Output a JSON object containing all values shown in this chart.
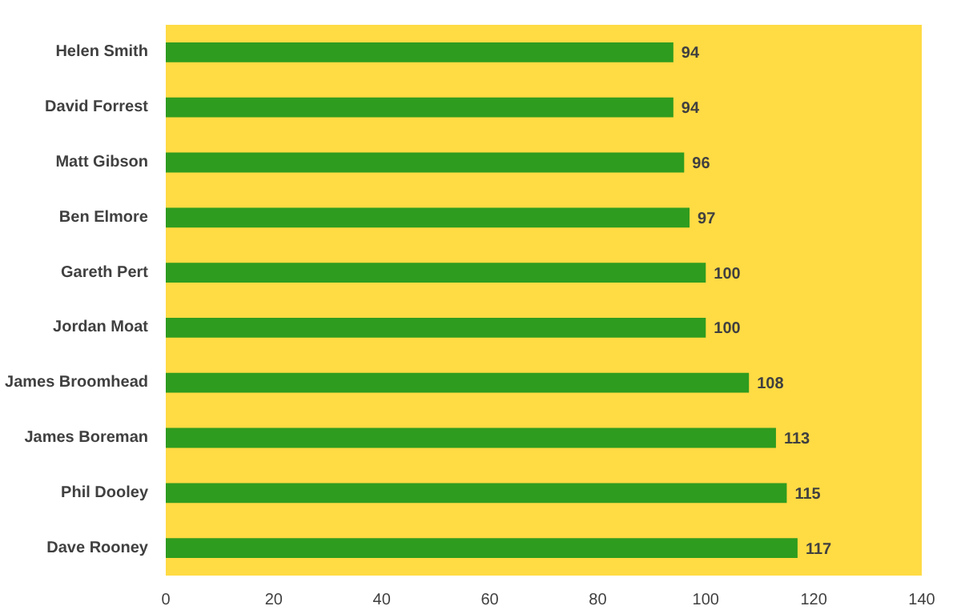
{
  "chart_data": {
    "type": "bar",
    "orientation": "horizontal",
    "categories": [
      "Helen Smith",
      "David Forrest",
      "Matt Gibson",
      "Ben Elmore",
      "Gareth Pert",
      "Jordan Moat",
      "James Broomhead",
      "James Boreman",
      "Phil Dooley",
      "Dave Rooney"
    ],
    "values": [
      94,
      94,
      96,
      97,
      100,
      100,
      108,
      113,
      115,
      117
    ],
    "color": "#2e9c1f",
    "xlim": [
      0,
      140
    ],
    "xticks": [
      0,
      20,
      40,
      60,
      80,
      100,
      120,
      140
    ],
    "data_labels": true,
    "grid": false
  }
}
